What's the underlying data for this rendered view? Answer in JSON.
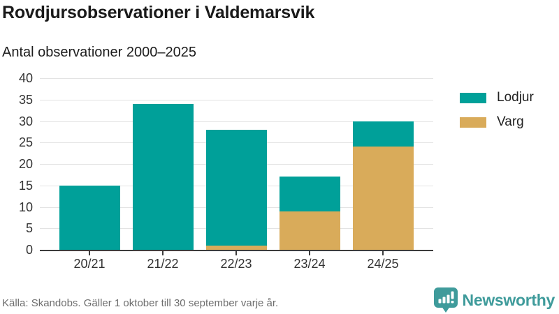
{
  "header": {
    "title": "Rovdjursobservationer i Valdemarsvik",
    "subtitle": "Antal observationer 2000–2025"
  },
  "chart_data": {
    "type": "bar",
    "stacked": true,
    "title": "Rovdjursobservationer i Valdemarsvik",
    "subtitle": "Antal observationer 2000–2025",
    "categories": [
      "20/21",
      "21/22",
      "22/23",
      "23/24",
      "24/25"
    ],
    "series": [
      {
        "name": "Lodjur",
        "color": "#00a099",
        "values": [
          15,
          34,
          27,
          8,
          6
        ]
      },
      {
        "name": "Varg",
        "color": "#d9ab5a",
        "values": [
          0,
          0,
          1,
          9,
          24
        ]
      }
    ],
    "stack_bottom_to_top": [
      "Varg",
      "Lodjur"
    ],
    "totals": [
      15,
      34,
      28,
      17,
      30
    ],
    "xlabel": "",
    "ylabel": "",
    "ylim": [
      0,
      40
    ],
    "yticks": [
      0,
      5,
      10,
      15,
      20,
      25,
      30,
      35,
      40
    ],
    "grid": true,
    "legend_position": "right"
  },
  "footer": {
    "source": "Källa: Skandobs. Gäller 1 oktober till 30 september varje år."
  },
  "branding": {
    "logo_text": "Newsworthy",
    "logo_color": "#3f9b9b",
    "icon": "newsworthy-bubble-barchart-icon"
  },
  "colors": {
    "lodjur": "#00a099",
    "varg": "#d9ab5a",
    "grid": "#e3e3e3",
    "axis": "#3c3c3c",
    "text": "#1a1a1a",
    "muted": "#6e6e6e"
  }
}
